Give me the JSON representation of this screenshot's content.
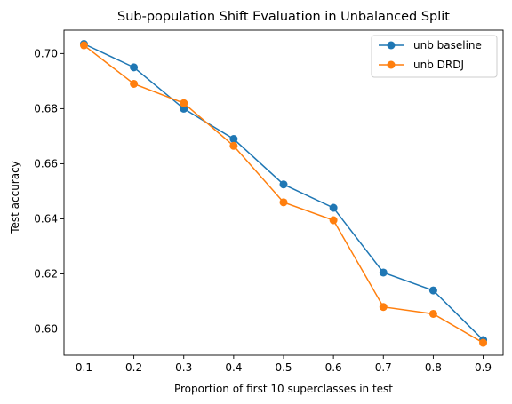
{
  "chart_data": {
    "type": "line",
    "title": "Sub-population Shift Evaluation in Unbalanced Split",
    "xlabel": "Proportion of first 10 superclasses in test",
    "ylabel": "Test accuracy",
    "x": [
      0.1,
      0.2,
      0.3,
      0.4,
      0.5,
      0.6,
      0.7,
      0.8,
      0.9
    ],
    "x_ticks": [
      "0.1",
      "0.2",
      "0.3",
      "0.4",
      "0.5",
      "0.6",
      "0.7",
      "0.8",
      "0.9"
    ],
    "y_ticks": [
      "0.60",
      "0.62",
      "0.64",
      "0.66",
      "0.68",
      "0.70"
    ],
    "xlim": [
      0.06,
      0.94
    ],
    "ylim": [
      0.5905,
      0.7085
    ],
    "grid": false,
    "legend_position": "top-right",
    "series": [
      {
        "name": "unb baseline",
        "color": "#1f77b4",
        "values": [
          0.7035,
          0.695,
          0.68,
          0.669,
          0.6525,
          0.644,
          0.6205,
          0.614,
          0.596
        ]
      },
      {
        "name": "unb DRDJ",
        "color": "#ff7f0e",
        "values": [
          0.703,
          0.689,
          0.682,
          0.6665,
          0.646,
          0.6395,
          0.608,
          0.6055,
          0.595
        ]
      }
    ]
  }
}
